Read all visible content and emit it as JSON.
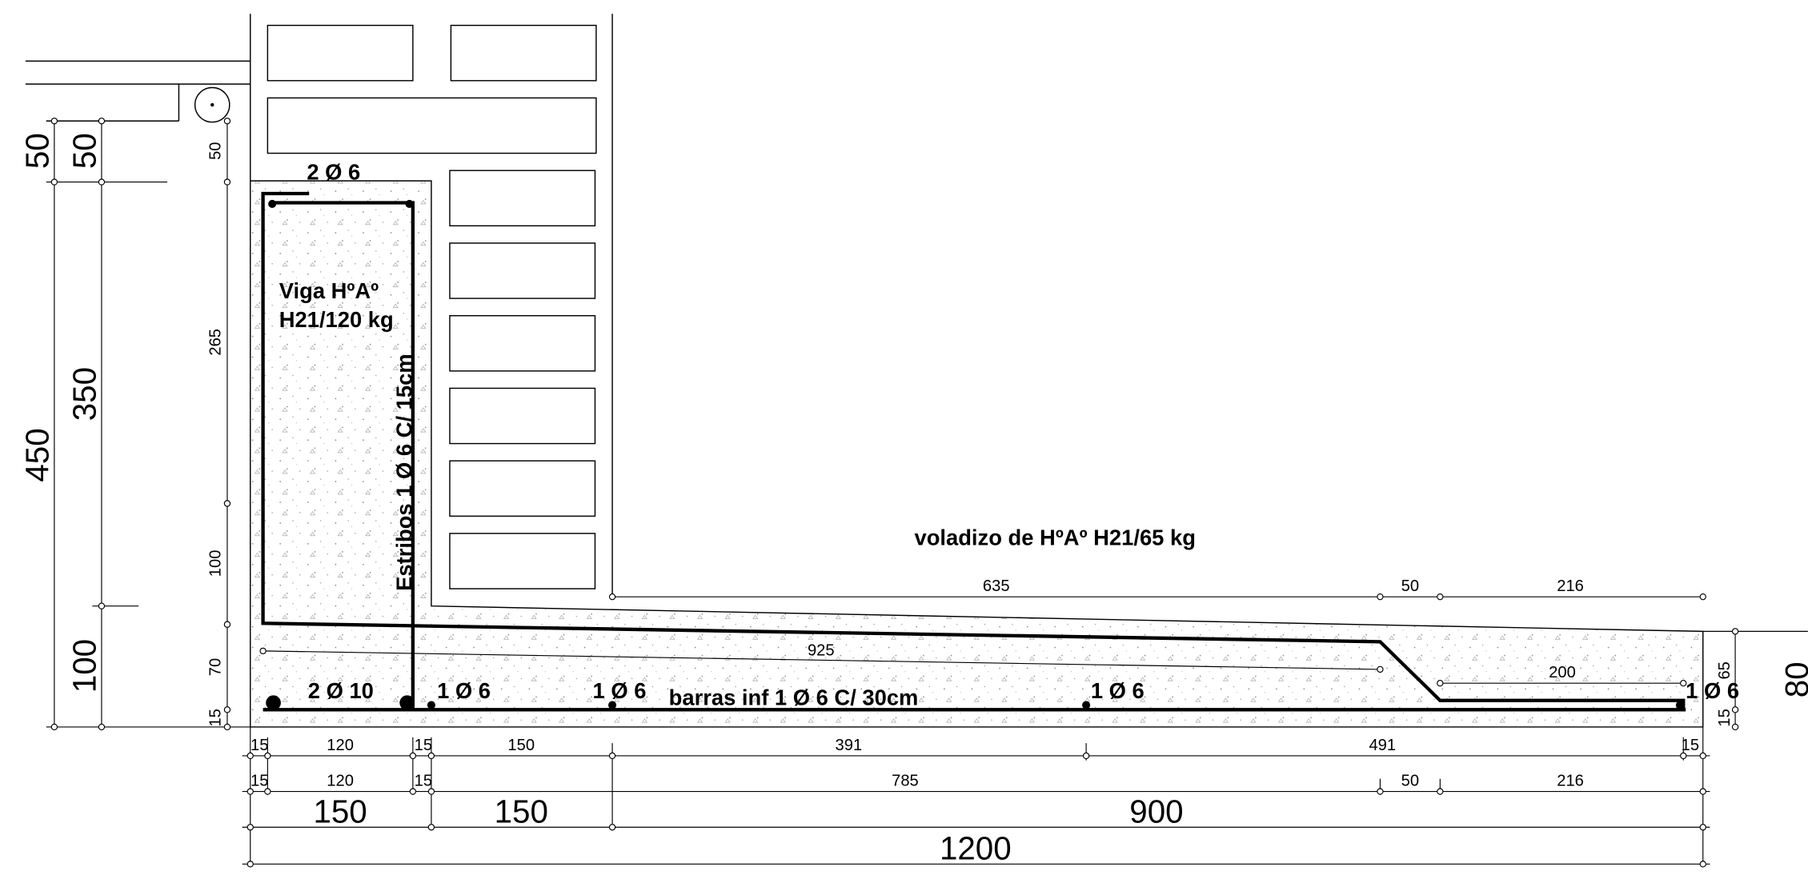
{
  "left_dimensions": {
    "large": [
      "50",
      "50",
      "450",
      "350",
      "100"
    ],
    "small": [
      "50",
      "265",
      "100",
      "70",
      "15"
    ]
  },
  "annotations": {
    "top_bars": "2 Ø 6",
    "beam_title": "Viga HºAº",
    "beam_spec": "H21/120 kg",
    "stirrups": "Estribos 1 Ø 6 C/ 15cm",
    "beam_bottom_bars": "2 Ø 10",
    "bar_a": "1 Ø 6",
    "bar_b": "1 Ø 6",
    "slab_bottom_bars": "barras inf 1 Ø 6 C/ 30cm",
    "bar_c": "1 Ø 6",
    "bar_d": "1 Ø 6",
    "cantilever": "voladizo de HºAº H21/65 kg"
  },
  "slab_dimensions": {
    "top": [
      "635",
      "50",
      "216"
    ],
    "slope": "925",
    "end": "200",
    "right": [
      "65",
      "15",
      "80"
    ]
  },
  "bottom_dimensions": {
    "row1": [
      "15",
      "120",
      "15",
      "150",
      "391",
      "491",
      "15"
    ],
    "row2": [
      "15",
      "120",
      "15",
      "785",
      "50",
      "216"
    ],
    "row3": [
      "150",
      "150",
      "900"
    ],
    "row4": [
      "1200"
    ]
  }
}
